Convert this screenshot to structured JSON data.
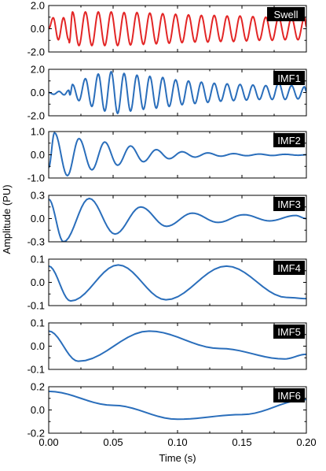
{
  "chart_data": {
    "type": "line",
    "ylabel": "Amplitude (PU)",
    "xlabel": "Time (s)",
    "xlim": [
      0,
      0.2
    ],
    "x_ticks": [
      "0.00",
      "0.05",
      "0.10",
      "0.15",
      "0.20"
    ],
    "x_tick_values": [
      0,
      0.05,
      0.1,
      0.15,
      0.2
    ],
    "grid": false,
    "panels": [
      {
        "name": "Swell",
        "color": "#e32626",
        "ylim": [
          -2.0,
          2.0
        ],
        "y_ticks": [
          "2.0",
          "0.0",
          "-2.0"
        ],
        "y_tick_values": [
          2.0,
          0.0,
          -2.0
        ],
        "x": [
          0,
          0.0035,
          0.0075,
          0.0115,
          0.0155,
          0.016,
          0.0185,
          0.0235,
          0.0285,
          0.0335,
          0.0385,
          0.0435,
          0.0485,
          0.0535,
          0.0585,
          0.0635,
          0.0685,
          0.0735,
          0.0785,
          0.0835,
          0.0885,
          0.0935,
          0.0985,
          0.1035,
          0.1085,
          0.1135,
          0.1185,
          0.1235,
          0.1285,
          0.1335,
          0.1385,
          0.1435,
          0.1485,
          0.1535,
          0.1585,
          0.1635,
          0.1685,
          0.1735,
          0.1785,
          0.1835,
          0.1885,
          0.1935,
          0.1985,
          0.2
        ],
        "values": [
          0,
          0.95,
          -0.95,
          0.95,
          -0.95,
          -1.2,
          1.45,
          -1.45,
          1.45,
          -1.45,
          1.45,
          -1.45,
          1.45,
          -1.45,
          1.4,
          -1.4,
          1.4,
          -1.35,
          1.35,
          -1.3,
          1.3,
          -1.25,
          1.25,
          -1.2,
          1.2,
          -1.15,
          1.15,
          -1.15,
          1.15,
          -1.1,
          1.1,
          -1.1,
          1.1,
          -1.05,
          1.05,
          -1.0,
          1.0,
          -1.0,
          1.0,
          -0.95,
          0.95,
          -0.95,
          0.95,
          0.2
        ]
      },
      {
        "name": "IMF1",
        "color": "#2a6ebb",
        "ylim": [
          -2.0,
          2.0
        ],
        "y_ticks": [
          "2.0",
          "0.0",
          "-2.0"
        ],
        "y_tick_values": [
          2.0,
          0.0,
          -2.0
        ],
        "x": [
          0,
          0.004,
          0.008,
          0.012,
          0.0155,
          0.0165,
          0.0185,
          0.0235,
          0.0285,
          0.0335,
          0.0385,
          0.0435,
          0.0485,
          0.0535,
          0.0585,
          0.0635,
          0.0685,
          0.0735,
          0.0785,
          0.0835,
          0.0885,
          0.0935,
          0.0985,
          0.1035,
          0.1085,
          0.1135,
          0.1185,
          0.1235,
          0.1285,
          0.1335,
          0.1385,
          0.1435,
          0.1485,
          0.1535,
          0.1585,
          0.1635,
          0.1685,
          0.1735,
          0.1785,
          0.1835,
          0.1885,
          0.1935,
          0.1985,
          0.2
        ],
        "values": [
          0,
          -0.15,
          0.1,
          -0.2,
          0.2,
          -0.2,
          0.7,
          -0.7,
          1.2,
          -1.2,
          1.6,
          -1.6,
          1.8,
          -1.8,
          1.65,
          -1.6,
          1.5,
          -1.45,
          1.4,
          -1.35,
          1.3,
          -1.2,
          1.1,
          -1.05,
          1.0,
          -0.95,
          0.9,
          -0.85,
          0.8,
          -0.75,
          0.75,
          -0.7,
          0.7,
          -0.65,
          0.65,
          -0.6,
          0.6,
          -0.6,
          0.85,
          -0.6,
          0.6,
          -0.55,
          0.5,
          0.1
        ]
      },
      {
        "name": "IMF2",
        "color": "#2a6ebb",
        "ylim": [
          -1.0,
          1.0
        ],
        "y_ticks": [
          "1.0",
          "0.0",
          "-1.0"
        ],
        "y_tick_values": [
          1.0,
          0.0,
          -1.0
        ],
        "x": [
          0,
          0.0045,
          0.0145,
          0.0235,
          0.0335,
          0.0435,
          0.0535,
          0.0635,
          0.0735,
          0.0835,
          0.0935,
          0.1035,
          0.1135,
          0.1235,
          0.1335,
          0.1435,
          0.1535,
          0.1635,
          0.1735,
          0.1835,
          0.1935,
          0.2
        ],
        "values": [
          -0.55,
          0.95,
          -0.9,
          0.7,
          -0.65,
          0.55,
          -0.45,
          0.38,
          -0.3,
          0.22,
          -0.17,
          0.13,
          -0.1,
          0.08,
          -0.06,
          0.05,
          -0.04,
          0.03,
          -0.03,
          0.02,
          -0.02,
          0.0
        ]
      },
      {
        "name": "IMF3",
        "color": "#2a6ebb",
        "ylim": [
          -0.3,
          0.3
        ],
        "y_ticks": [
          "0.3",
          "0.0",
          "-0.3"
        ],
        "y_tick_values": [
          0.3,
          0.0,
          -0.3
        ],
        "x": [
          0,
          0.0115,
          0.0315,
          0.0515,
          0.0715,
          0.0915,
          0.1115,
          0.1315,
          0.1515,
          0.1715,
          0.1915,
          0.2
        ],
        "values": [
          0.25,
          -0.3,
          0.26,
          -0.2,
          0.15,
          -0.1,
          0.07,
          -0.05,
          0.05,
          -0.03,
          0.04,
          0.0
        ]
      },
      {
        "name": "IMF4",
        "color": "#2a6ebb",
        "ylim": [
          -0.1,
          0.1
        ],
        "y_ticks": [
          "0.1",
          "0.0",
          "-0.1"
        ],
        "y_tick_values": [
          0.1,
          0.0,
          -0.1
        ],
        "x": [
          0,
          0.017,
          0.054,
          0.091,
          0.138,
          0.185,
          0.2
        ],
        "values": [
          0.07,
          -0.08,
          0.075,
          -0.075,
          0.07,
          -0.065,
          -0.07
        ]
      },
      {
        "name": "IMF5",
        "color": "#2a6ebb",
        "ylim": [
          -0.1,
          0.1
        ],
        "y_ticks": [
          "0.1",
          "0.0",
          "-0.1"
        ],
        "y_tick_values": [
          0.1,
          0.0,
          -0.1
        ],
        "x": [
          0,
          0.023,
          0.078,
          0.133,
          0.183,
          0.2
        ],
        "values": [
          0.065,
          -0.065,
          0.065,
          -0.01,
          -0.055,
          -0.035
        ]
      },
      {
        "name": "IMF6",
        "color": "#2a6ebb",
        "ylim": [
          -0.2,
          0.2
        ],
        "y_ticks": [
          "0.2",
          "0.0",
          "-0.2"
        ],
        "y_tick_values": [
          0.2,
          0.0,
          -0.2
        ],
        "x": [
          0,
          0.05,
          0.1,
          0.15,
          0.2
        ],
        "values": [
          0.16,
          0.04,
          -0.08,
          -0.04,
          0.09
        ]
      }
    ]
  }
}
